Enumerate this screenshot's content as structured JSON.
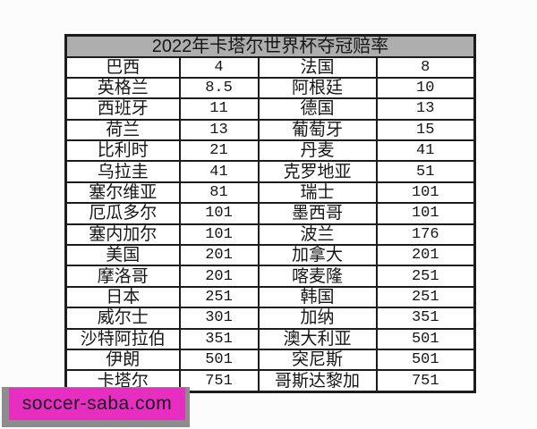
{
  "page": {
    "background": "#fcfcfc"
  },
  "styles": {
    "border_color": "#1c1c1c",
    "title_background": "#aeaeae",
    "text_color": "#161616"
  },
  "chart_data": {
    "type": "table",
    "title": "2022年卡塔尔世界杯夺冠赔率",
    "layout": "4 columns: team, odds, team, odds; 16 rows; merged gray title row on top",
    "rows": [
      [
        "巴西",
        "4",
        "法国",
        "8"
      ],
      [
        "英格兰",
        "8.5",
        "阿根廷",
        "10"
      ],
      [
        "西班牙",
        "11",
        "德国",
        "13"
      ],
      [
        "荷兰",
        "13",
        "葡萄牙",
        "15"
      ],
      [
        "比利时",
        "21",
        "丹麦",
        "41"
      ],
      [
        "乌拉圭",
        "41",
        "克罗地亚",
        "51"
      ],
      [
        "塞尔维亚",
        "81",
        "瑞士",
        "101"
      ],
      [
        "厄瓜多尔",
        "101",
        "墨西哥",
        "101"
      ],
      [
        "塞内加尔",
        "101",
        "波兰",
        "176"
      ],
      [
        "美国",
        "201",
        "加拿大",
        "201"
      ],
      [
        "摩洛哥",
        "201",
        "喀麦隆",
        "251"
      ],
      [
        "日本",
        "251",
        "韩国",
        "251"
      ],
      [
        "威尔士",
        "301",
        "加纳",
        "351"
      ],
      [
        "沙特阿拉伯",
        "351",
        "澳大利亚",
        "501"
      ],
      [
        "伊朗",
        "501",
        "突尼斯",
        "501"
      ],
      [
        "卡塔尔",
        "751",
        "哥斯达黎加",
        "751"
      ]
    ]
  },
  "watermark": {
    "text": "soccer-saba.com",
    "background": "#e62ec0",
    "shadow_color": "#8d8d8d",
    "text_color": "#1c0f1f"
  }
}
